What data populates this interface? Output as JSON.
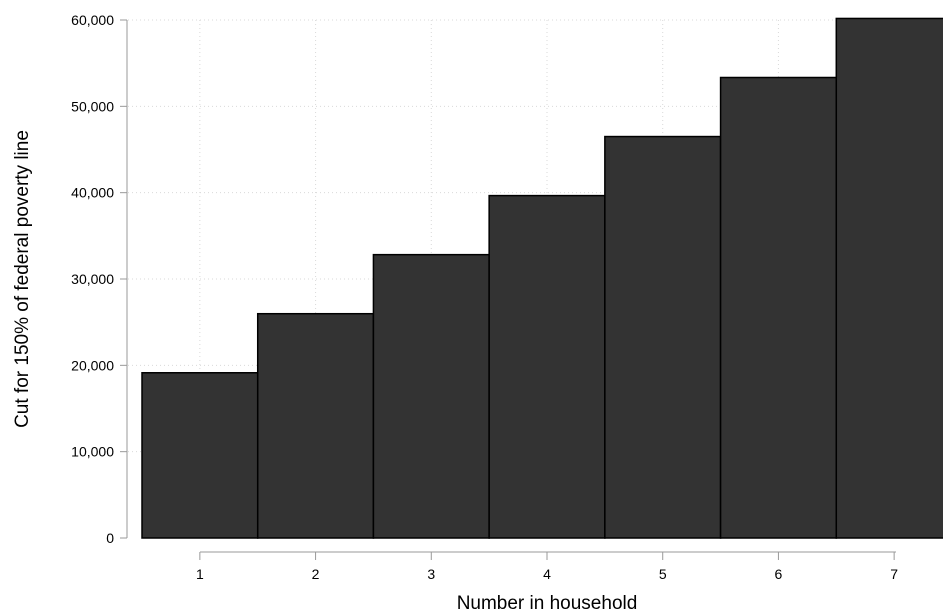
{
  "chart_data": {
    "type": "bar",
    "categories": [
      "1",
      "2",
      "3",
      "4",
      "5",
      "6",
      "7"
    ],
    "values": [
      19140,
      25980,
      32820,
      39660,
      46500,
      53340,
      60180
    ],
    "xlabel": "Number in household",
    "ylabel": "Cut for 150% of federal poverty line",
    "ylim": [
      0,
      60000
    ],
    "yticks": [
      0,
      10000,
      20000,
      30000,
      40000,
      50000,
      60000
    ],
    "ytick_labels": [
      "0",
      "10,000",
      "20,000",
      "30,000",
      "40,000",
      "50,000",
      "60,000"
    ],
    "grid": true,
    "bar_color": "#333333",
    "bar_edge_color": "#000000"
  }
}
